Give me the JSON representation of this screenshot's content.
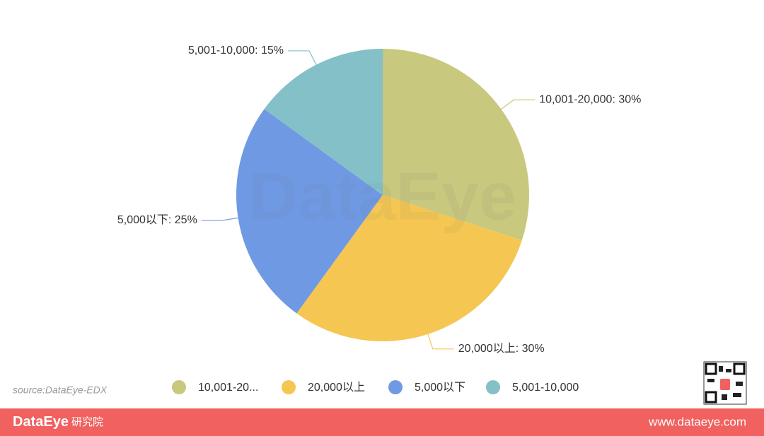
{
  "chart_data": {
    "type": "pie",
    "categories": [
      "10,001-20,000",
      "20,000以上",
      "5,000以下",
      "5,001-10,000"
    ],
    "values": [
      30,
      30,
      25,
      15
    ],
    "value_labels": [
      "10,001-20,000: 30%",
      "20,000以上: 30%",
      "5,000以下: 25%",
      "5,001-10,000: 15%"
    ],
    "colors": [
      "#c8c87e",
      "#f5c652",
      "#6f9ae3",
      "#84c0c8"
    ],
    "legend_labels": [
      "10,001-20...",
      "20,000以上",
      "5,000以下",
      "5,001-10,000"
    ],
    "legend": "bottom"
  },
  "watermark": "DataEye",
  "source": "source:DataEye-EDX",
  "footer": {
    "brand": "DataEye",
    "brand_suffix": "研究院",
    "url": "www.dataeye.com"
  }
}
